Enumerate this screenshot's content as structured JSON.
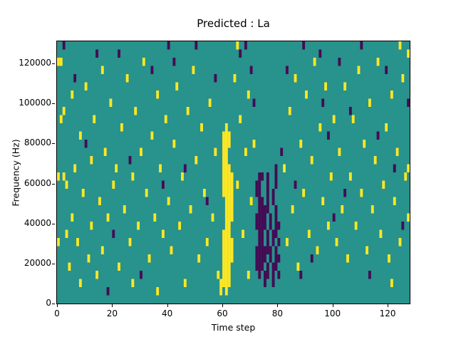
{
  "chart_data": {
    "type": "heatmap",
    "title": "Predicted : La",
    "xlabel": "Time step",
    "ylabel": "Frequency (Hz)",
    "x_range": [
      0,
      128
    ],
    "y_range": [
      0,
      131072
    ],
    "x_ticks": [
      0,
      20,
      40,
      60,
      80,
      100,
      120
    ],
    "y_ticks": [
      0,
      20000,
      40000,
      60000,
      80000,
      100000,
      120000
    ],
    "grid": {
      "cols": 128,
      "rows": 32,
      "hz_per_row": 4096
    },
    "colors": {
      "background": "#28928c",
      "positive": "#fde725",
      "negative": "#440c54"
    },
    "legend": "none",
    "cell_values": {
      "1": "positive (yellow)",
      "2": "negative (dark purple)"
    },
    "cells": [
      [
        60,
        2,
        1
      ],
      [
        60,
        3,
        1
      ],
      [
        60,
        4,
        1
      ],
      [
        60,
        5,
        1
      ],
      [
        60,
        6,
        1
      ],
      [
        60,
        7,
        1
      ],
      [
        60,
        8,
        1
      ],
      [
        60,
        13,
        1
      ],
      [
        60,
        14,
        1
      ],
      [
        60,
        15,
        1
      ],
      [
        60,
        16,
        1
      ],
      [
        60,
        17,
        1
      ],
      [
        60,
        18,
        1
      ],
      [
        60,
        19,
        1
      ],
      [
        60,
        20,
        1
      ],
      [
        61,
        1,
        1
      ],
      [
        61,
        2,
        1
      ],
      [
        61,
        3,
        1
      ],
      [
        61,
        4,
        1
      ],
      [
        61,
        5,
        1
      ],
      [
        61,
        6,
        1
      ],
      [
        61,
        7,
        1
      ],
      [
        61,
        8,
        1
      ],
      [
        61,
        9,
        1
      ],
      [
        61,
        10,
        1
      ],
      [
        61,
        11,
        1
      ],
      [
        61,
        12,
        1
      ],
      [
        61,
        13,
        1
      ],
      [
        61,
        14,
        1
      ],
      [
        61,
        15,
        1
      ],
      [
        61,
        16,
        1
      ],
      [
        61,
        17,
        1
      ],
      [
        61,
        18,
        1
      ],
      [
        61,
        19,
        1
      ],
      [
        61,
        20,
        1
      ],
      [
        61,
        21,
        1
      ],
      [
        62,
        2,
        1
      ],
      [
        62,
        3,
        1
      ],
      [
        62,
        4,
        1
      ],
      [
        62,
        5,
        1
      ],
      [
        62,
        6,
        1
      ],
      [
        62,
        7,
        1
      ],
      [
        62,
        8,
        1
      ],
      [
        62,
        9,
        1
      ],
      [
        62,
        10,
        1
      ],
      [
        62,
        11,
        1
      ],
      [
        62,
        12,
        1
      ],
      [
        62,
        13,
        1
      ],
      [
        62,
        14,
        1
      ],
      [
        62,
        15,
        1
      ],
      [
        62,
        16,
        1
      ],
      [
        62,
        19,
        1
      ],
      [
        62,
        20,
        1
      ],
      [
        63,
        5,
        1
      ],
      [
        63,
        6,
        1
      ],
      [
        63,
        7,
        1
      ],
      [
        63,
        10,
        1
      ],
      [
        63,
        11,
        1
      ],
      [
        63,
        12,
        1
      ],
      [
        63,
        13,
        1
      ],
      [
        63,
        14,
        1
      ],
      [
        63,
        15,
        1
      ],
      [
        59,
        1,
        1
      ],
      [
        59,
        2,
        1
      ],
      [
        72,
        4,
        2
      ],
      [
        72,
        5,
        2
      ],
      [
        72,
        6,
        2
      ],
      [
        72,
        9,
        2
      ],
      [
        72,
        10,
        2
      ],
      [
        72,
        13,
        2
      ],
      [
        72,
        14,
        2
      ],
      [
        73,
        3,
        2
      ],
      [
        73,
        4,
        2
      ],
      [
        73,
        5,
        2
      ],
      [
        73,
        6,
        2
      ],
      [
        73,
        7,
        2
      ],
      [
        73,
        8,
        2
      ],
      [
        73,
        9,
        2
      ],
      [
        73,
        10,
        2
      ],
      [
        73,
        11,
        2
      ],
      [
        73,
        12,
        2
      ],
      [
        73,
        13,
        2
      ],
      [
        73,
        14,
        2
      ],
      [
        73,
        15,
        2
      ],
      [
        74,
        4,
        2
      ],
      [
        74,
        5,
        2
      ],
      [
        74,
        6,
        2
      ],
      [
        74,
        7,
        2
      ],
      [
        74,
        8,
        2
      ],
      [
        74,
        9,
        2
      ],
      [
        74,
        10,
        2
      ],
      [
        74,
        11,
        2
      ],
      [
        74,
        12,
        2
      ],
      [
        74,
        15,
        2
      ],
      [
        75,
        2,
        2
      ],
      [
        75,
        3,
        2
      ],
      [
        75,
        5,
        2
      ],
      [
        75,
        6,
        2
      ],
      [
        75,
        9,
        2
      ],
      [
        75,
        10,
        2
      ],
      [
        75,
        11,
        2
      ],
      [
        76,
        3,
        2
      ],
      [
        76,
        4,
        2
      ],
      [
        76,
        6,
        2
      ],
      [
        76,
        7,
        2
      ],
      [
        76,
        8,
        2
      ],
      [
        76,
        11,
        2
      ],
      [
        76,
        12,
        2
      ],
      [
        76,
        13,
        2
      ],
      [
        76,
        14,
        2
      ],
      [
        76,
        15,
        2
      ],
      [
        77,
        5,
        2
      ],
      [
        77,
        6,
        2
      ],
      [
        77,
        9,
        2
      ],
      [
        77,
        10,
        2
      ],
      [
        78,
        2,
        2
      ],
      [
        78,
        3,
        2
      ],
      [
        78,
        4,
        2
      ],
      [
        78,
        7,
        2
      ],
      [
        78,
        8,
        2
      ],
      [
        78,
        12,
        2
      ],
      [
        78,
        13,
        2
      ],
      [
        79,
        4,
        2
      ],
      [
        79,
        5,
        2
      ],
      [
        79,
        6,
        2
      ],
      [
        79,
        8,
        2
      ],
      [
        79,
        9,
        2
      ],
      [
        79,
        10,
        2
      ],
      [
        79,
        11,
        2
      ],
      [
        79,
        14,
        2
      ],
      [
        79,
        15,
        2
      ],
      [
        79,
        16,
        2
      ],
      [
        80,
        3,
        2
      ],
      [
        80,
        5,
        2
      ],
      [
        80,
        7,
        2
      ],
      [
        80,
        9,
        2
      ],
      [
        0,
        29,
        1
      ],
      [
        0,
        15,
        1
      ],
      [
        0,
        7,
        1
      ],
      [
        1,
        29,
        1
      ],
      [
        1,
        22,
        1
      ],
      [
        2,
        23,
        1
      ],
      [
        2,
        15,
        1
      ],
      [
        3,
        14,
        1
      ],
      [
        3,
        8,
        1
      ],
      [
        4,
        4,
        1
      ],
      [
        5,
        25,
        1
      ],
      [
        5,
        10,
        1
      ],
      [
        6,
        16,
        1
      ],
      [
        7,
        7,
        1
      ],
      [
        8,
        20,
        1
      ],
      [
        8,
        2,
        1
      ],
      [
        9,
        13,
        1
      ],
      [
        10,
        26,
        1
      ],
      [
        11,
        5,
        1
      ],
      [
        12,
        17,
        1
      ],
      [
        12,
        9,
        1
      ],
      [
        13,
        22,
        1
      ],
      [
        14,
        3,
        1
      ],
      [
        15,
        12,
        1
      ],
      [
        16,
        28,
        1
      ],
      [
        16,
        6,
        1
      ],
      [
        17,
        18,
        1
      ],
      [
        18,
        10,
        1
      ],
      [
        19,
        24,
        1
      ],
      [
        20,
        14,
        1
      ],
      [
        2,
        31,
        2
      ],
      [
        6,
        27,
        2
      ],
      [
        10,
        19,
        2
      ],
      [
        14,
        30,
        2
      ],
      [
        18,
        1,
        2
      ],
      [
        20,
        8,
        2
      ],
      [
        21,
        16,
        1
      ],
      [
        22,
        4,
        1
      ],
      [
        23,
        21,
        1
      ],
      [
        24,
        11,
        1
      ],
      [
        25,
        27,
        1
      ],
      [
        26,
        7,
        1
      ],
      [
        27,
        15,
        1
      ],
      [
        27,
        2,
        1
      ],
      [
        28,
        23,
        1
      ],
      [
        29,
        9,
        1
      ],
      [
        30,
        18,
        1
      ],
      [
        31,
        29,
        1
      ],
      [
        32,
        13,
        1
      ],
      [
        33,
        5,
        1
      ],
      [
        34,
        20,
        1
      ],
      [
        35,
        10,
        1
      ],
      [
        36,
        25,
        1
      ],
      [
        36,
        1,
        1
      ],
      [
        37,
        16,
        1
      ],
      [
        38,
        8,
        1
      ],
      [
        39,
        22,
        1
      ],
      [
        40,
        12,
        1
      ],
      [
        22,
        30,
        2
      ],
      [
        26,
        17,
        2
      ],
      [
        30,
        3,
        2
      ],
      [
        34,
        28,
        2
      ],
      [
        38,
        14,
        2
      ],
      [
        40,
        31,
        2
      ],
      [
        41,
        6,
        1
      ],
      [
        42,
        19,
        1
      ],
      [
        43,
        26,
        1
      ],
      [
        44,
        9,
        1
      ],
      [
        45,
        15,
        1
      ],
      [
        46,
        2,
        1
      ],
      [
        47,
        23,
        1
      ],
      [
        48,
        11,
        1
      ],
      [
        49,
        28,
        1
      ],
      [
        50,
        17,
        1
      ],
      [
        51,
        5,
        1
      ],
      [
        52,
        21,
        1
      ],
      [
        53,
        13,
        1
      ],
      [
        54,
        7,
        1
      ],
      [
        55,
        24,
        1
      ],
      [
        56,
        10,
        1
      ],
      [
        57,
        18,
        1
      ],
      [
        58,
        3,
        1
      ],
      [
        42,
        29,
        2
      ],
      [
        46,
        16,
        2
      ],
      [
        50,
        31,
        2
      ],
      [
        54,
        12,
        2
      ],
      [
        57,
        27,
        2
      ],
      [
        64,
        27,
        1
      ],
      [
        65,
        14,
        1
      ],
      [
        66,
        22,
        1
      ],
      [
        67,
        8,
        1
      ],
      [
        68,
        18,
        1
      ],
      [
        69,
        25,
        1
      ],
      [
        70,
        12,
        1
      ],
      [
        71,
        19,
        1
      ],
      [
        65,
        31,
        1
      ],
      [
        69,
        3,
        1
      ],
      [
        66,
        30,
        2
      ],
      [
        70,
        28,
        2
      ],
      [
        68,
        31,
        2
      ],
      [
        71,
        24,
        2
      ],
      [
        82,
        16,
        1
      ],
      [
        83,
        7,
        1
      ],
      [
        84,
        23,
        1
      ],
      [
        85,
        11,
        1
      ],
      [
        86,
        27,
        1
      ],
      [
        87,
        4,
        1
      ],
      [
        88,
        19,
        1
      ],
      [
        89,
        13,
        1
      ],
      [
        90,
        25,
        1
      ],
      [
        91,
        8,
        1
      ],
      [
        92,
        17,
        1
      ],
      [
        93,
        29,
        1
      ],
      [
        94,
        6,
        1
      ],
      [
        95,
        21,
        1
      ],
      [
        96,
        12,
        1
      ],
      [
        97,
        26,
        1
      ],
      [
        98,
        9,
        1
      ],
      [
        99,
        15,
        1
      ],
      [
        100,
        22,
        1
      ],
      [
        81,
        18,
        2
      ],
      [
        83,
        28,
        2
      ],
      [
        86,
        14,
        2
      ],
      [
        89,
        31,
        2
      ],
      [
        92,
        5,
        2
      ],
      [
        95,
        30,
        2
      ],
      [
        98,
        20,
        2
      ],
      [
        100,
        10,
        2
      ],
      [
        88,
        3,
        2
      ],
      [
        96,
        24,
        2
      ],
      [
        101,
        7,
        1
      ],
      [
        102,
        18,
        1
      ],
      [
        103,
        11,
        1
      ],
      [
        104,
        26,
        1
      ],
      [
        105,
        5,
        1
      ],
      [
        106,
        15,
        1
      ],
      [
        107,
        22,
        1
      ],
      [
        108,
        9,
        1
      ],
      [
        109,
        28,
        1
      ],
      [
        110,
        13,
        1
      ],
      [
        111,
        19,
        1
      ],
      [
        112,
        6,
        1
      ],
      [
        113,
        24,
        1
      ],
      [
        114,
        11,
        1
      ],
      [
        115,
        17,
        1
      ],
      [
        116,
        29,
        1
      ],
      [
        117,
        8,
        1
      ],
      [
        118,
        14,
        1
      ],
      [
        119,
        21,
        1
      ],
      [
        120,
        5,
        1
      ],
      [
        121,
        25,
        1
      ],
      [
        122,
        12,
        1
      ],
      [
        123,
        18,
        1
      ],
      [
        124,
        7,
        1
      ],
      [
        125,
        27,
        1
      ],
      [
        126,
        15,
        1
      ],
      [
        127,
        10,
        1
      ],
      [
        127,
        30,
        1
      ],
      [
        124,
        31,
        1
      ],
      [
        121,
        2,
        1
      ],
      [
        127,
        16,
        1
      ],
      [
        102,
        29,
        2
      ],
      [
        106,
        23,
        2
      ],
      [
        110,
        31,
        2
      ],
      [
        113,
        3,
        2
      ],
      [
        116,
        20,
        2
      ],
      [
        119,
        28,
        2
      ],
      [
        122,
        16,
        2
      ],
      [
        125,
        9,
        2
      ],
      [
        127,
        24,
        2
      ],
      [
        104,
        13,
        2
      ]
    ]
  }
}
